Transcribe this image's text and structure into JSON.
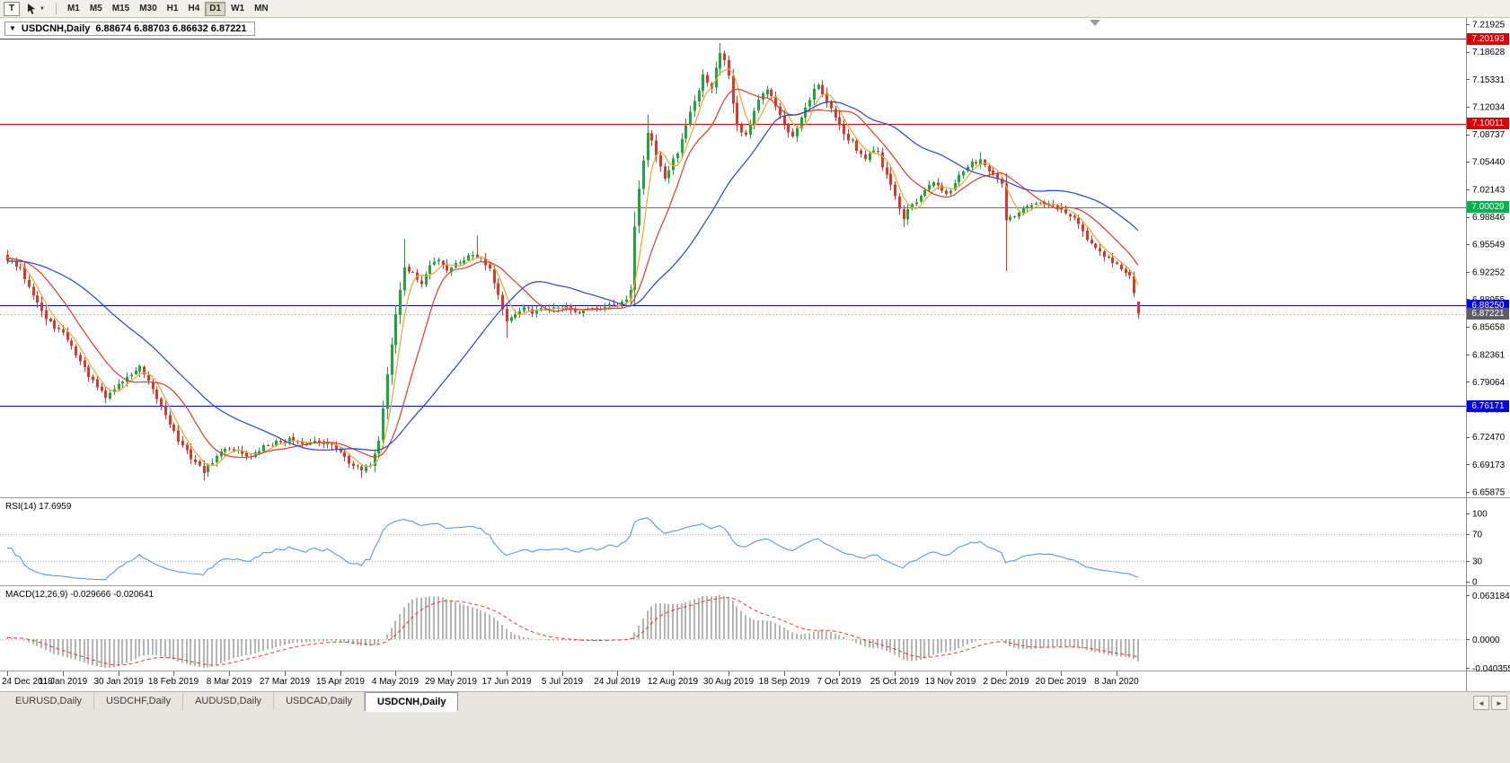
{
  "toolbar": {
    "text_tool_label": "T",
    "timeframes": [
      "M1",
      "M5",
      "M15",
      "M30",
      "H1",
      "H4",
      "D1",
      "W1",
      "MN"
    ],
    "active_timeframe": "D1"
  },
  "icons": {
    "dropdown_caret": "▼",
    "title_marker": "▼",
    "tab_scroll_left": "◄",
    "tab_scroll_right": "►"
  },
  "chart": {
    "symbol_period": "USDCNH,Daily",
    "ohlc_line": "6.88674 6.88703 6.86632 6.87221"
  },
  "price_axis": {
    "ticks": [
      "7.21925",
      "7.18628",
      "7.15331",
      "7.12034",
      "7.08737",
      "7.05440",
      "7.02143",
      "6.98846",
      "6.95549",
      "6.92252",
      "6.88955",
      "6.85658",
      "6.82361",
      "6.79064",
      "6.75767",
      "6.72470",
      "6.69173",
      "6.65875"
    ]
  },
  "levels": [
    {
      "value": "7.20193",
      "color": "#de0000"
    },
    {
      "value": "7.10011",
      "color": "#de0000"
    },
    {
      "value": "7.00029",
      "color": "#00b34d"
    },
    {
      "value": "6.88250",
      "color": "#0000e0"
    },
    {
      "value": "6.76171",
      "color": "#0000e0"
    }
  ],
  "current_price": {
    "value": "6.87221",
    "color": "#5c5c64"
  },
  "rsi_pane": {
    "label": "RSI(14)",
    "value": "17.6959",
    "axis": [
      "100",
      "70",
      "30",
      "0"
    ],
    "upper_level": 70,
    "lower_level": 30
  },
  "macd_pane": {
    "label": "MACD(12,26,9)",
    "main_value": "-0.029666",
    "signal_value": "-0.020641",
    "axis": [
      "0.063184",
      "0.0000",
      "-0.040355"
    ]
  },
  "date_axis": [
    "24 Dec 2018",
    "11 Jan 2019",
    "30 Jan 2019",
    "18 Feb 2019",
    "8 Mar 2019",
    "27 Mar 2019",
    "15 Apr 2019",
    "4 May 2019",
    "29 May 2019",
    "17 Jun 2019",
    "5 Jul 2019",
    "24 Jul 2019",
    "12 Aug 2019",
    "30 Aug 2019",
    "18 Sep 2019",
    "7 Oct 2019",
    "25 Oct 2019",
    "13 Nov 2019",
    "2 Dec 2019",
    "20 Dec 2019",
    "8 Jan 2020"
  ],
  "tabs": {
    "items": [
      "EURUSD,Daily",
      "USDCHF,Daily",
      "AUDUSD,Daily",
      "USDCAD,Daily",
      "USDCNH,Daily"
    ],
    "active_index": 4
  },
  "colors": {
    "up": "#1fa83a",
    "down": "#e0352b",
    "rsi_line": "#5b9bd5",
    "macd_hist": "#b5b5b5",
    "macd_signal": "#e8382a",
    "pane_bg": "#ffffff",
    "chrome_bg": "#e8e5de",
    "axis_text": "#000000",
    "separator": "#9a9a9a"
  },
  "chart_data": {
    "type": "candlestick",
    "symbol": "USDCNH",
    "timeframe": "Daily",
    "title": "USDCNH,Daily 6.88674 6.88703 6.86632 6.87221",
    "y_range": [
      6.65875,
      7.21925
    ],
    "bars": 266,
    "first_label": "24 Dec 2018",
    "last_label": "8 Jan 2020",
    "last_bar": {
      "open": 6.88674,
      "high": 6.88703,
      "low": 6.86632,
      "close": 6.87221
    },
    "horizontal_levels": [
      7.20193,
      7.10011,
      7.00029,
      6.8825,
      6.76171
    ],
    "moving_averages": [
      {
        "period": 5,
        "color": "#f2a52a"
      },
      {
        "period": 13,
        "color": "#e8382a"
      },
      {
        "period": 34,
        "color": "#2746cf"
      }
    ],
    "rsi": {
      "period": 14,
      "last": 17.6959
    },
    "macd": {
      "fast": 12,
      "slow": 26,
      "signal": 9,
      "last_main": -0.029666,
      "last_signal": -0.020641,
      "display_max": 0.063184,
      "display_min": -0.040355
    },
    "prehistory": {
      "bars": 55,
      "from": 6.925,
      "to": 6.94
    },
    "price_anchors": [
      [
        0,
        6.938
      ],
      [
        3,
        6.925
      ],
      [
        6,
        6.897
      ],
      [
        9,
        6.865
      ],
      [
        12,
        6.853
      ],
      [
        14,
        6.842
      ],
      [
        17,
        6.815
      ],
      [
        20,
        6.79
      ],
      [
        23,
        6.772
      ],
      [
        26,
        6.788
      ],
      [
        29,
        6.8
      ],
      [
        31,
        6.808
      ],
      [
        34,
        6.78
      ],
      [
        37,
        6.752
      ],
      [
        40,
        6.72
      ],
      [
        43,
        6.7
      ],
      [
        46,
        6.683
      ],
      [
        48,
        6.695
      ],
      [
        51,
        6.712
      ],
      [
        54,
        6.708
      ],
      [
        57,
        6.7
      ],
      [
        60,
        6.713
      ],
      [
        63,
        6.718
      ],
      [
        66,
        6.722
      ],
      [
        69,
        6.714
      ],
      [
        72,
        6.72
      ],
      [
        75,
        6.717
      ],
      [
        78,
        6.708
      ],
      [
        80,
        6.695
      ],
      [
        83,
        6.684
      ],
      [
        85,
        6.692
      ],
      [
        87,
        6.72
      ],
      [
        89,
        6.8
      ],
      [
        91,
        6.872
      ],
      [
        93,
        6.928
      ],
      [
        95,
        6.92
      ],
      [
        97,
        6.908
      ],
      [
        99,
        6.93
      ],
      [
        101,
        6.938
      ],
      [
        103,
        6.925
      ],
      [
        105,
        6.932
      ],
      [
        107,
        6.938
      ],
      [
        109,
        6.944
      ],
      [
        111,
        6.94
      ],
      [
        113,
        6.926
      ],
      [
        115,
        6.895
      ],
      [
        117,
        6.862
      ],
      [
        119,
        6.87
      ],
      [
        121,
        6.882
      ],
      [
        123,
        6.872
      ],
      [
        125,
        6.877
      ],
      [
        127,
        6.88
      ],
      [
        129,
        6.878
      ],
      [
        131,
        6.882
      ],
      [
        133,
        6.872
      ],
      [
        135,
        6.875
      ],
      [
        137,
        6.878
      ],
      [
        139,
        6.88
      ],
      [
        141,
        6.884
      ],
      [
        143,
        6.88
      ],
      [
        145,
        6.888
      ],
      [
        146,
        6.9
      ],
      [
        147,
        6.975
      ],
      [
        148,
        7.02
      ],
      [
        149,
        7.055
      ],
      [
        150,
        7.09
      ],
      [
        151,
        7.08
      ],
      [
        152,
        7.06
      ],
      [
        153,
        7.048
      ],
      [
        154,
        7.035
      ],
      [
        155,
        7.042
      ],
      [
        156,
        7.058
      ],
      [
        157,
        7.065
      ],
      [
        158,
        7.08
      ],
      [
        159,
        7.1
      ],
      [
        160,
        7.115
      ],
      [
        161,
        7.13
      ],
      [
        162,
        7.142
      ],
      [
        163,
        7.158
      ],
      [
        164,
        7.148
      ],
      [
        165,
        7.14
      ],
      [
        166,
        7.165
      ],
      [
        167,
        7.185
      ],
      [
        168,
        7.175
      ],
      [
        169,
        7.16
      ],
      [
        170,
        7.125
      ],
      [
        171,
        7.1
      ],
      [
        172,
        7.092
      ],
      [
        173,
        7.088
      ],
      [
        174,
        7.1
      ],
      [
        175,
        7.115
      ],
      [
        176,
        7.128
      ],
      [
        177,
        7.135
      ],
      [
        178,
        7.14
      ],
      [
        179,
        7.135
      ],
      [
        180,
        7.12
      ],
      [
        181,
        7.11
      ],
      [
        182,
        7.1
      ],
      [
        183,
        7.09
      ],
      [
        184,
        7.085
      ],
      [
        185,
        7.095
      ],
      [
        186,
        7.108
      ],
      [
        187,
        7.12
      ],
      [
        188,
        7.13
      ],
      [
        189,
        7.142
      ],
      [
        190,
        7.148
      ],
      [
        191,
        7.135
      ],
      [
        192,
        7.125
      ],
      [
        193,
        7.118
      ],
      [
        194,
        7.108
      ],
      [
        195,
        7.1
      ],
      [
        196,
        7.09
      ],
      [
        197,
        7.082
      ],
      [
        198,
        7.078
      ],
      [
        199,
        7.07
      ],
      [
        200,
        7.062
      ],
      [
        201,
        7.058
      ],
      [
        202,
        7.065
      ],
      [
        203,
        7.07
      ],
      [
        204,
        7.065
      ],
      [
        205,
        7.05
      ],
      [
        206,
        7.04
      ],
      [
        207,
        7.028
      ],
      [
        208,
        7.012
      ],
      [
        209,
        6.998
      ],
      [
        210,
        6.988
      ],
      [
        211,
        6.995
      ],
      [
        212,
        7.002
      ],
      [
        213,
        7.005
      ],
      [
        214,
        7.012
      ],
      [
        215,
        7.02
      ],
      [
        216,
        7.025
      ],
      [
        217,
        7.03
      ],
      [
        218,
        7.028
      ],
      [
        219,
        7.022
      ],
      [
        220,
        7.018
      ],
      [
        221,
        7.022
      ],
      [
        222,
        7.03
      ],
      [
        223,
        7.038
      ],
      [
        224,
        7.042
      ],
      [
        225,
        7.048
      ],
      [
        226,
        7.052
      ],
      [
        228,
        7.058
      ],
      [
        230,
        7.044
      ],
      [
        231,
        7.038
      ],
      [
        233,
        7.03
      ],
      [
        234,
        6.982
      ],
      [
        236,
        6.99
      ],
      [
        238,
        6.997
      ],
      [
        241,
        7.004
      ],
      [
        244,
        7.004
      ],
      [
        247,
        6.996
      ],
      [
        250,
        6.985
      ],
      [
        253,
        6.962
      ],
      [
        256,
        6.945
      ],
      [
        259,
        6.934
      ],
      [
        261,
        6.926
      ],
      [
        263,
        6.918
      ],
      [
        264,
        6.895
      ],
      [
        265,
        6.872
      ]
    ],
    "spikes": [
      {
        "index": 46,
        "low": 6.672
      },
      {
        "index": 83,
        "low": 6.6755
      },
      {
        "index": 93,
        "high": 6.962
      },
      {
        "index": 110,
        "high": 6.966
      },
      {
        "index": 117,
        "low": 6.843
      },
      {
        "index": 150,
        "high": 7.111
      },
      {
        "index": 167,
        "high": 7.1965
      },
      {
        "index": 210,
        "low": 6.976
      },
      {
        "index": 228,
        "high": 7.066
      },
      {
        "index": 234,
        "low": 6.9235
      }
    ]
  }
}
